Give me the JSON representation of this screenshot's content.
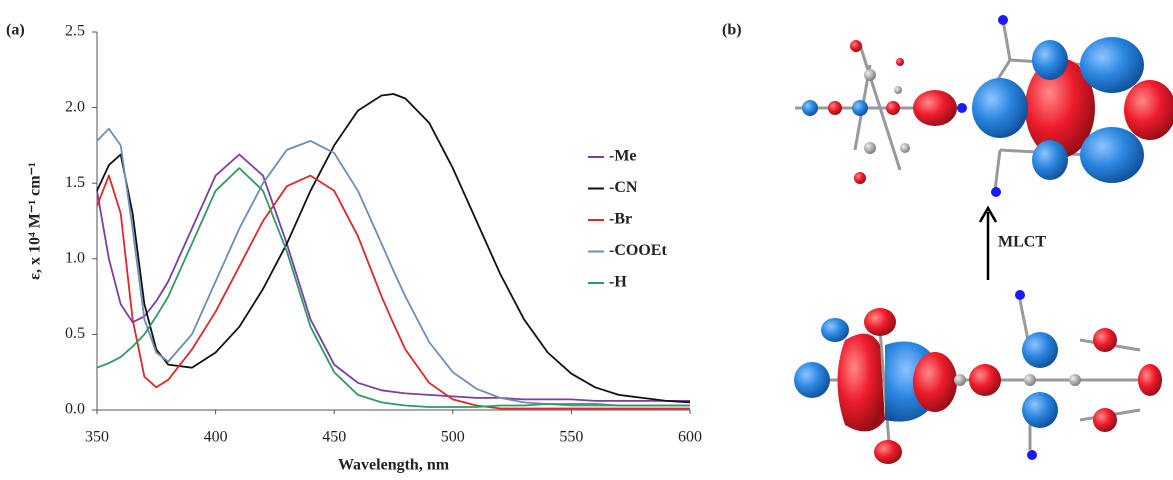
{
  "panel_labels": [
    "(a)",
    "(b)"
  ],
  "annotation": "MLCT",
  "chart_data": {
    "type": "line",
    "xlabel": "Wavelength, nm",
    "ylabel": "ε, x 10⁴ M⁻¹ cm⁻¹",
    "x": [
      350,
      355,
      360,
      365,
      370,
      375,
      380,
      390,
      400,
      410,
      420,
      430,
      440,
      450,
      460,
      470,
      475,
      480,
      490,
      500,
      510,
      520,
      530,
      540,
      550,
      560,
      570,
      580,
      590,
      600
    ],
    "xlim": [
      350,
      600
    ],
    "xticks": [
      350,
      400,
      450,
      500,
      550,
      600
    ],
    "ylim": [
      0,
      2.5
    ],
    "yticks": [
      {
        "value": 0,
        "label": "0.0"
      },
      0.5,
      {
        "value": 1,
        "label": "1.0"
      },
      1.5,
      {
        "value": 2,
        "label": "2.0"
      },
      2.5
    ],
    "grid": false,
    "legend": "right",
    "series": [
      {
        "name": "-Me",
        "color": "#7a3fa3",
        "values": [
          1.45,
          1.0,
          0.7,
          0.58,
          0.62,
          0.72,
          0.85,
          1.2,
          1.55,
          1.69,
          1.55,
          1.1,
          0.6,
          0.3,
          0.18,
          0.13,
          0.12,
          0.11,
          0.1,
          0.09,
          0.08,
          0.08,
          0.07,
          0.07,
          0.07,
          0.06,
          0.06,
          0.06,
          0.06,
          0.06
        ]
      },
      {
        "name": "-CN",
        "color": "#111111",
        "values": [
          1.45,
          1.62,
          1.69,
          1.3,
          0.7,
          0.4,
          0.3,
          0.28,
          0.38,
          0.55,
          0.8,
          1.1,
          1.45,
          1.75,
          1.98,
          2.08,
          2.09,
          2.06,
          1.9,
          1.6,
          1.25,
          0.9,
          0.6,
          0.38,
          0.24,
          0.15,
          0.1,
          0.08,
          0.06,
          0.05
        ]
      },
      {
        "name": "-Br",
        "color": "#e0262a",
        "values": [
          1.35,
          1.55,
          1.3,
          0.6,
          0.22,
          0.15,
          0.2,
          0.4,
          0.65,
          0.95,
          1.25,
          1.48,
          1.55,
          1.45,
          1.15,
          0.75,
          0.57,
          0.4,
          0.18,
          0.07,
          0.03,
          0.01,
          0.01,
          0.01,
          0.01,
          0.01,
          0.01,
          0.01,
          0.01,
          0.01
        ]
      },
      {
        "name": "-COOEt",
        "color": "#6f8db3",
        "values": [
          1.78,
          1.86,
          1.75,
          1.2,
          0.6,
          0.38,
          0.32,
          0.5,
          0.85,
          1.2,
          1.5,
          1.72,
          1.78,
          1.7,
          1.45,
          1.1,
          0.92,
          0.75,
          0.45,
          0.25,
          0.14,
          0.08,
          0.05,
          0.04,
          0.03,
          0.03,
          0.03,
          0.03,
          0.03,
          0.03
        ]
      },
      {
        "name": "-H",
        "color": "#2f9a63",
        "values": [
          0.28,
          0.31,
          0.35,
          0.42,
          0.5,
          0.62,
          0.75,
          1.1,
          1.45,
          1.6,
          1.45,
          1.05,
          0.55,
          0.25,
          0.1,
          0.05,
          0.04,
          0.03,
          0.02,
          0.02,
          0.02,
          0.03,
          0.03,
          0.04,
          0.04,
          0.04,
          0.03,
          0.03,
          0.03,
          0.03
        ]
      }
    ]
  }
}
